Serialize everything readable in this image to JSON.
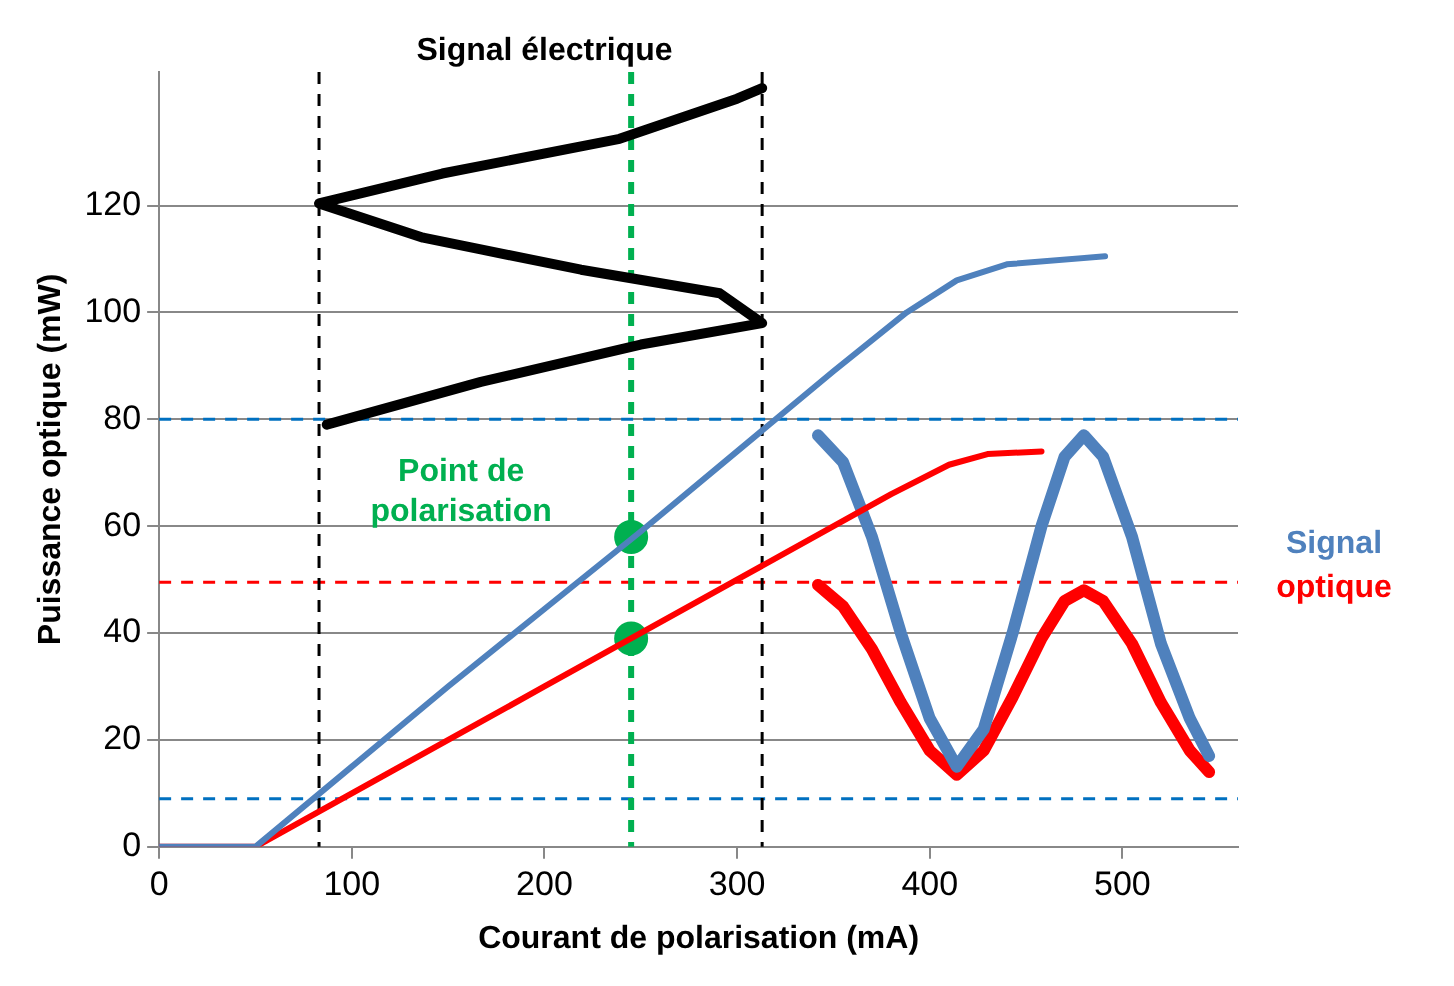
{
  "chart_data": {
    "type": "line",
    "xlabel": "Courant de polarisation (mA)",
    "ylabel": "Puissance optique (mW)",
    "xlim": [
      0,
      560
    ],
    "xticks": [
      0,
      100,
      200,
      300,
      400,
      500
    ],
    "ylim": [
      0,
      145
    ],
    "yticks": [
      0,
      20,
      40,
      60,
      80,
      100,
      120
    ],
    "grid": "y",
    "line_style": "solid",
    "marker": "none",
    "series": [
      {
        "color": "#4f81bd",
        "x": [
          0,
          50,
          100,
          150,
          200,
          250,
          300,
          350,
          388,
          414,
          440,
          491
        ],
        "values": [
          0,
          0,
          15,
          30,
          44.5,
          59,
          74,
          89,
          100,
          106,
          109,
          110.5
        ]
      },
      {
        "color": "#ff0000",
        "x": [
          0,
          50,
          100,
          200,
          300,
          380,
          410,
          430,
          458
        ],
        "values": [
          0,
          0,
          10,
          30,
          50,
          66,
          71.5,
          73.5,
          74
        ]
      },
      {
        "color": "#4f81bd",
        "x": [
          342,
          355,
          370,
          385,
          400,
          414,
          428,
          443,
          458,
          470,
          480,
          490,
          505,
          520,
          535,
          545
        ],
        "values": [
          77,
          72,
          58,
          40,
          24,
          15,
          22,
          40,
          60,
          73,
          77,
          73,
          58,
          38,
          24,
          17
        ]
      },
      {
        "color": "#ff0000",
        "x": [
          342,
          355,
          370,
          385,
          400,
          414,
          428,
          443,
          458,
          470,
          480,
          490,
          505,
          520,
          535,
          545
        ],
        "values": [
          49,
          45,
          37,
          27,
          18,
          13.5,
          18,
          28,
          39,
          46,
          48,
          46,
          38,
          27,
          18,
          14
        ]
      },
      {
        "color": "#000000",
        "x": [
          87,
          167,
          250,
          313,
          291,
          219,
          137,
          83,
          147,
          239,
          300,
          313
        ],
        "values": [
          79,
          87,
          94,
          98,
          103.6,
          108,
          114,
          120.4,
          126,
          132.5,
          140,
          142
        ]
      },
      {
        "type": "scatter",
        "marker": "circle",
        "color": "#00b050",
        "x": [
          245,
          245
        ],
        "values": [
          58,
          39
        ]
      }
    ],
    "ref_lines": [
      {
        "axis": "y",
        "value": 80,
        "color": "#0070c0",
        "line_style": "dashed"
      },
      {
        "axis": "y",
        "value": 9,
        "color": "#0070c0",
        "line_style": "dashed"
      },
      {
        "axis": "y",
        "value": 49.5,
        "color": "#ff0000",
        "line_style": "dashed"
      },
      {
        "axis": "x",
        "value": 83,
        "color": "#000000",
        "line_style": "dashed"
      },
      {
        "axis": "x",
        "value": 313,
        "color": "#000000",
        "line_style": "dashed"
      },
      {
        "axis": "x",
        "value": 245,
        "color": "#00b050",
        "line_style": "dashed"
      }
    ],
    "annotations": [
      "Signal électrique",
      {
        "text": "Point de polarisation",
        "x": 245,
        "y": 58
      },
      "Signal optique"
    ]
  }
}
